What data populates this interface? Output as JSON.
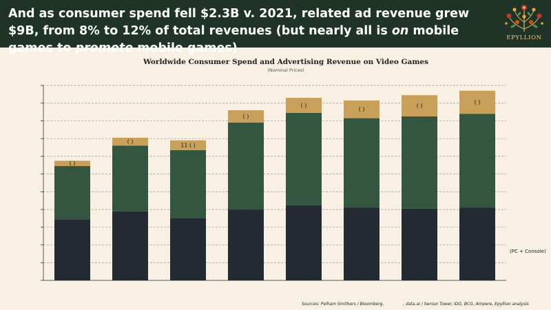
{
  "header": {
    "title_parts": [
      {
        "text": "And as consumer spend fell $2.3B v. 2021, related ad revenue grew $9B, from 8% to 12% of total revenues (but nearly all is ",
        "italic": false
      },
      {
        "text": "on",
        "italic": true
      },
      {
        "text": " mobile games to ",
        "italic": false
      },
      {
        "text": "promote",
        "italic": true
      },
      {
        "text": " mobile games)",
        "italic": false
      }
    ],
    "logo_text": "EPYLLION"
  },
  "chart_data": {
    "type": "bar",
    "stacked": true,
    "title": "Worldwide Consumer Spend and Advertising Revenue on Video Games",
    "subtitle": "(Nominal Prices)",
    "categories": [
      "",
      "",
      "",
      "",
      "",
      "",
      "",
      ""
    ],
    "ylim": [
      0,
      11
    ],
    "grid": true,
    "series": [
      {
        "color": "#232a33",
        "values": [
          3.45,
          3.9,
          3.5,
          4.0,
          4.25,
          4.1,
          4.05,
          4.1
        ]
      },
      {
        "color": "#34553f",
        "values": [
          3.0,
          3.7,
          3.85,
          4.9,
          5.2,
          5.05,
          5.2,
          5.3
        ]
      },
      {
        "color": "#c9a05a",
        "values": [
          0.3,
          0.45,
          0.55,
          0.7,
          0.85,
          1.0,
          1.2,
          1.3
        ]
      }
    ],
    "segment_labels": [
      [
        "",
        "",
        "",
        "",
        "",
        "",
        "",
        ""
      ],
      [
        "",
        "",
        "",
        "",
        "",
        "",
        "",
        ""
      ],
      [
        "(  )",
        "(  )",
        "11 (  )",
        "(  )",
        "(  )",
        "(  )",
        "(  )",
        "(  )"
      ]
    ],
    "annotations": [
      {
        "text": "(PC + Console)"
      }
    ]
  },
  "source": {
    "part1": "Sources: Pelham Smithers / Bloomberg,",
    "part2": ", data.ai / Sensor Tower, IDG, BCG, Ampere, Epyllion analysis"
  }
}
